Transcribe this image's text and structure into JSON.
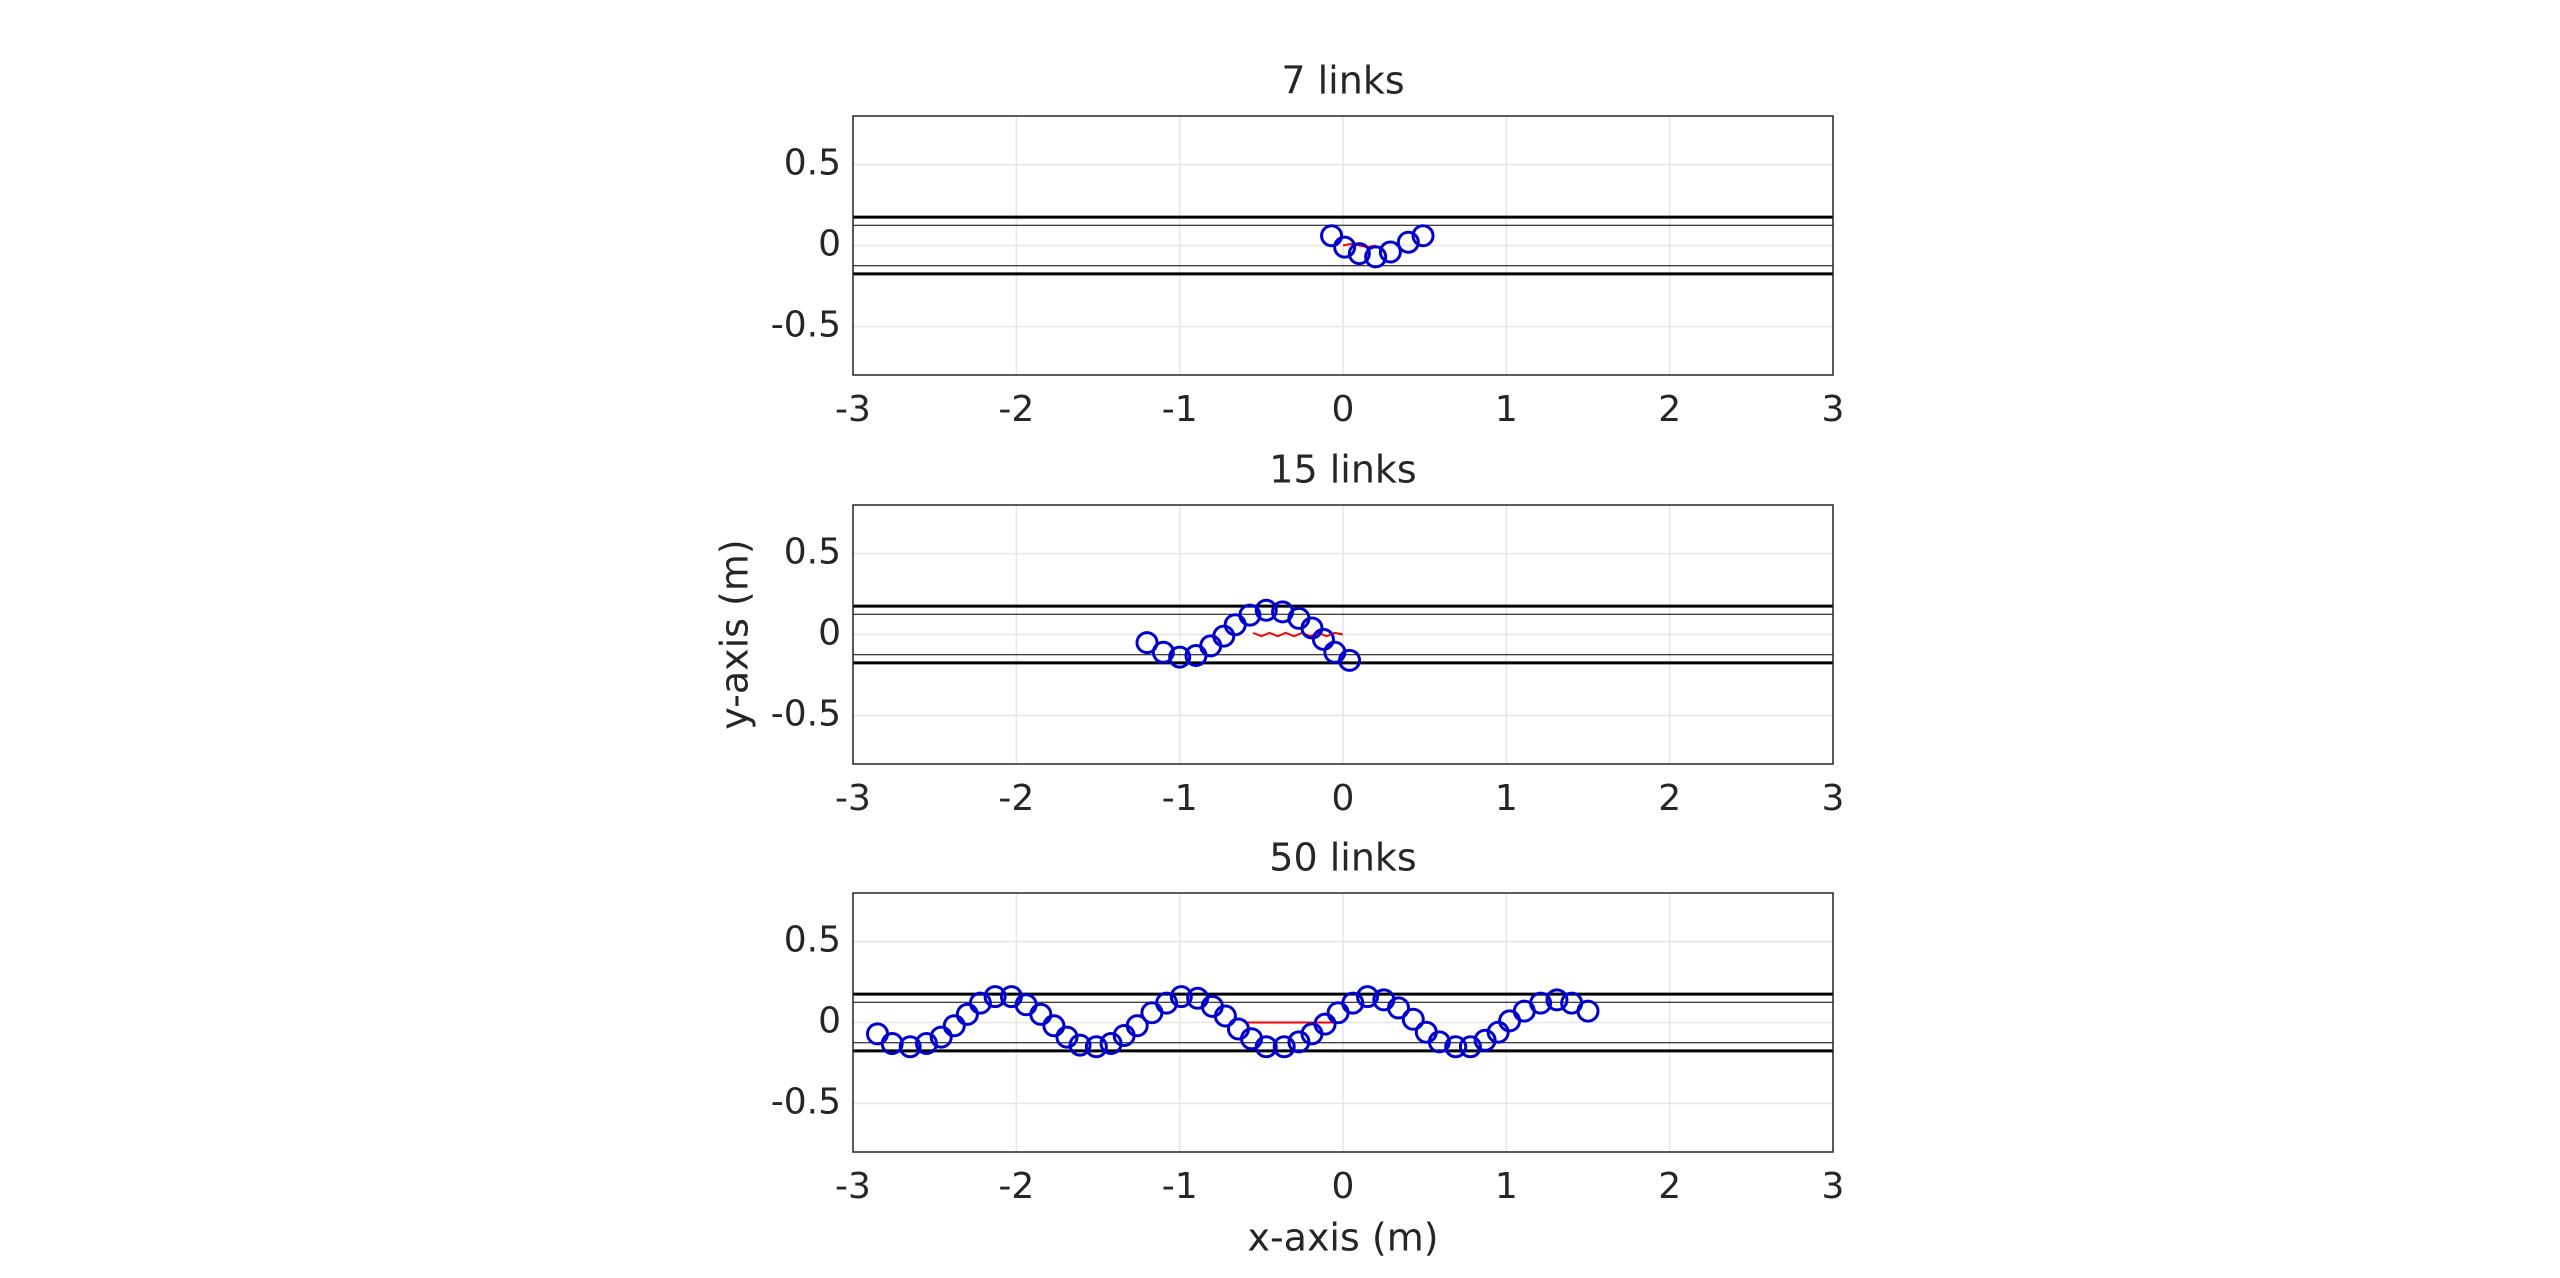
{
  "chart_data": [
    {
      "type": "line",
      "title": "7 links",
      "xlim": [
        -3,
        3
      ],
      "ylim": [
        -0.8,
        0.8
      ],
      "xticks": [
        -3,
        -2,
        -1,
        0,
        1,
        2,
        3
      ],
      "yticks": [
        -0.5,
        0,
        0.5
      ],
      "grid": true,
      "series": [
        {
          "color": "#000000",
          "line_width": 3,
          "x": [
            -3,
            3
          ],
          "values": [
            0.175,
            0.175
          ]
        },
        {
          "color": "#000000",
          "line_width": 1,
          "x": [
            -3,
            3
          ],
          "values": [
            0.125,
            0.125
          ]
        },
        {
          "color": "#000000",
          "line_width": 1,
          "x": [
            -3,
            3
          ],
          "values": [
            -0.125,
            -0.125
          ]
        },
        {
          "color": "#000000",
          "line_width": 3,
          "x": [
            -3,
            3
          ],
          "values": [
            -0.175,
            -0.175
          ]
        },
        {
          "color": "#ff0000",
          "line_width": 2,
          "x": [
            0,
            0.05,
            0.1,
            0.15,
            0.2
          ],
          "values": [
            0,
            0.01,
            0,
            -0.01,
            0
          ]
        },
        {
          "color": "#0000cc",
          "line_width": 0,
          "marker": "o",
          "x": [
            -0.07,
            0.01,
            0.1,
            0.2,
            0.29,
            0.4,
            0.49
          ],
          "values": [
            0.06,
            -0.01,
            -0.05,
            -0.07,
            -0.04,
            0.02,
            0.06
          ]
        }
      ]
    },
    {
      "type": "line",
      "title": "15 links",
      "ylabel": "y-axis (m)",
      "xlim": [
        -3,
        3
      ],
      "ylim": [
        -0.8,
        0.8
      ],
      "xticks": [
        -3,
        -2,
        -1,
        0,
        1,
        2,
        3
      ],
      "yticks": [
        -0.5,
        0,
        0.5
      ],
      "grid": true,
      "series": [
        {
          "color": "#000000",
          "line_width": 3,
          "x": [
            -3,
            3
          ],
          "values": [
            0.175,
            0.175
          ]
        },
        {
          "color": "#000000",
          "line_width": 1,
          "x": [
            -3,
            3
          ],
          "values": [
            0.125,
            0.125
          ]
        },
        {
          "color": "#000000",
          "line_width": 1,
          "x": [
            -3,
            3
          ],
          "values": [
            -0.125,
            -0.125
          ]
        },
        {
          "color": "#000000",
          "line_width": 3,
          "x": [
            -3,
            3
          ],
          "values": [
            -0.175,
            -0.175
          ]
        },
        {
          "color": "#ff0000",
          "line_width": 2,
          "x": [
            -0.55,
            -0.5,
            -0.45,
            -0.4,
            -0.35,
            -0.3,
            -0.25,
            -0.2,
            -0.15,
            -0.1,
            -0.05,
            0
          ],
          "values": [
            0.01,
            -0.01,
            0.01,
            -0.01,
            0.01,
            -0.01,
            0.01,
            -0.01,
            0.01,
            -0.01,
            0.01,
            0
          ]
        },
        {
          "color": "#0000cc",
          "line_width": 0,
          "marker": "o",
          "x": [
            -1.2,
            -1.1,
            -1.0,
            -0.9,
            -0.81,
            -0.73,
            -0.66,
            -0.57,
            -0.47,
            -0.37,
            -0.27,
            -0.19,
            -0.12,
            -0.05,
            0.04
          ],
          "values": [
            -0.05,
            -0.11,
            -0.14,
            -0.13,
            -0.07,
            -0.01,
            0.06,
            0.12,
            0.15,
            0.14,
            0.1,
            0.04,
            -0.03,
            -0.11,
            -0.16
          ]
        }
      ]
    },
    {
      "type": "line",
      "title": "50 links",
      "xlabel": "x-axis (m)",
      "xlim": [
        -3,
        3
      ],
      "ylim": [
        -0.8,
        0.8
      ],
      "xticks": [
        -3,
        -2,
        -1,
        0,
        1,
        2,
        3
      ],
      "yticks": [
        -0.5,
        0,
        0.5
      ],
      "grid": true,
      "series": [
        {
          "color": "#000000",
          "line_width": 3,
          "x": [
            -3,
            3
          ],
          "values": [
            0.175,
            0.175
          ]
        },
        {
          "color": "#000000",
          "line_width": 1,
          "x": [
            -3,
            3
          ],
          "values": [
            0.125,
            0.125
          ]
        },
        {
          "color": "#000000",
          "line_width": 1,
          "x": [
            -3,
            3
          ],
          "values": [
            -0.125,
            -0.125
          ]
        },
        {
          "color": "#000000",
          "line_width": 3,
          "x": [
            -3,
            3
          ],
          "values": [
            -0.175,
            -0.175
          ]
        },
        {
          "color": "#ff0000",
          "line_width": 2,
          "x": [
            -0.6,
            0
          ],
          "values": [
            0,
            0
          ]
        },
        {
          "color": "#0000cc",
          "line_width": 0,
          "marker": "o",
          "x": [
            -2.85,
            -2.76,
            -2.65,
            -2.55,
            -2.46,
            -2.38,
            -2.3,
            -2.22,
            -2.13,
            -2.03,
            -1.94,
            -1.85,
            -1.77,
            -1.69,
            -1.61,
            -1.51,
            -1.42,
            -1.34,
            -1.26,
            -1.17,
            -1.08,
            -0.99,
            -0.89,
            -0.8,
            -0.72,
            -0.64,
            -0.56,
            -0.47,
            -0.36,
            -0.27,
            -0.19,
            -0.11,
            -0.03,
            0.06,
            0.15,
            0.25,
            0.34,
            0.43,
            0.51,
            0.59,
            0.69,
            0.78,
            0.87,
            0.95,
            1.02,
            1.11,
            1.21,
            1.31,
            1.4,
            1.5
          ],
          "values": [
            -0.07,
            -0.13,
            -0.15,
            -0.13,
            -0.09,
            -0.02,
            0.05,
            0.12,
            0.16,
            0.16,
            0.11,
            0.05,
            -0.02,
            -0.09,
            -0.14,
            -0.15,
            -0.13,
            -0.08,
            -0.02,
            0.06,
            0.12,
            0.16,
            0.15,
            0.1,
            0.04,
            -0.04,
            -0.1,
            -0.15,
            -0.15,
            -0.12,
            -0.07,
            -0.01,
            0.06,
            0.12,
            0.16,
            0.14,
            0.09,
            0.02,
            -0.06,
            -0.12,
            -0.15,
            -0.15,
            -0.11,
            -0.06,
            0.01,
            0.07,
            0.12,
            0.14,
            0.12,
            0.07
          ]
        }
      ]
    }
  ]
}
